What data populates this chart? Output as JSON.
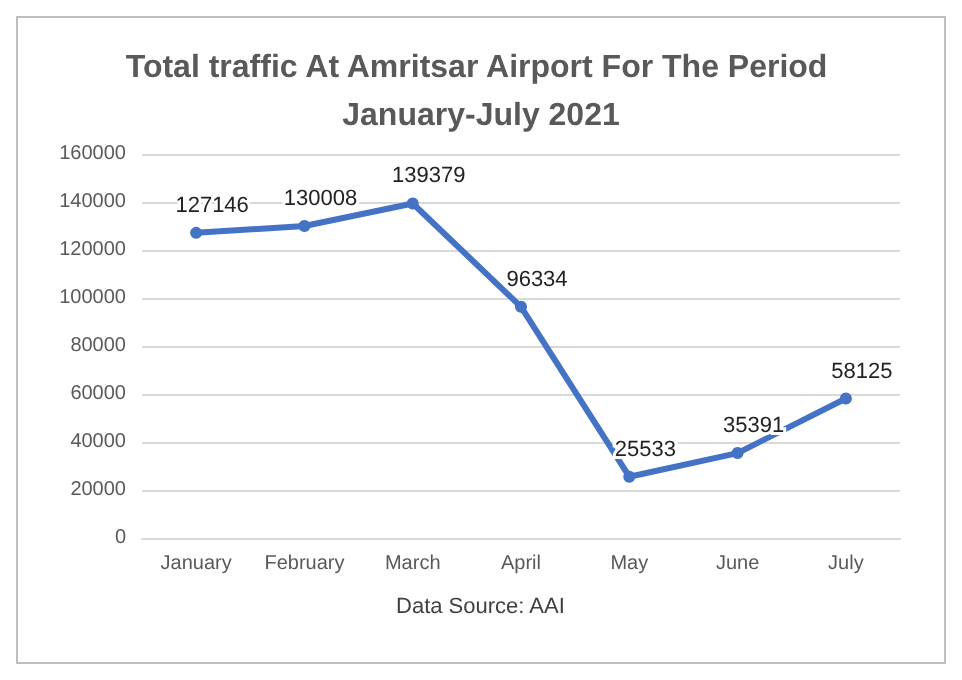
{
  "chart_data": {
    "type": "line",
    "title": "Total traffic At Amritsar Airport For The Period January-July 2021",
    "categories": [
      "January",
      "February",
      "March",
      "April",
      "May",
      "June",
      "July"
    ],
    "values": [
      127146,
      130008,
      139379,
      96334,
      25533,
      35391,
      58125
    ],
    "color": "#4472c4",
    "ylim": [
      0,
      160000
    ],
    "yticks": [
      0,
      20000,
      40000,
      60000,
      80000,
      100000,
      120000,
      140000,
      160000
    ],
    "grid": "y",
    "marker": "circle",
    "line_style": "solid",
    "data_labels": true,
    "annotations": [
      "Data Source: AAI"
    ]
  }
}
